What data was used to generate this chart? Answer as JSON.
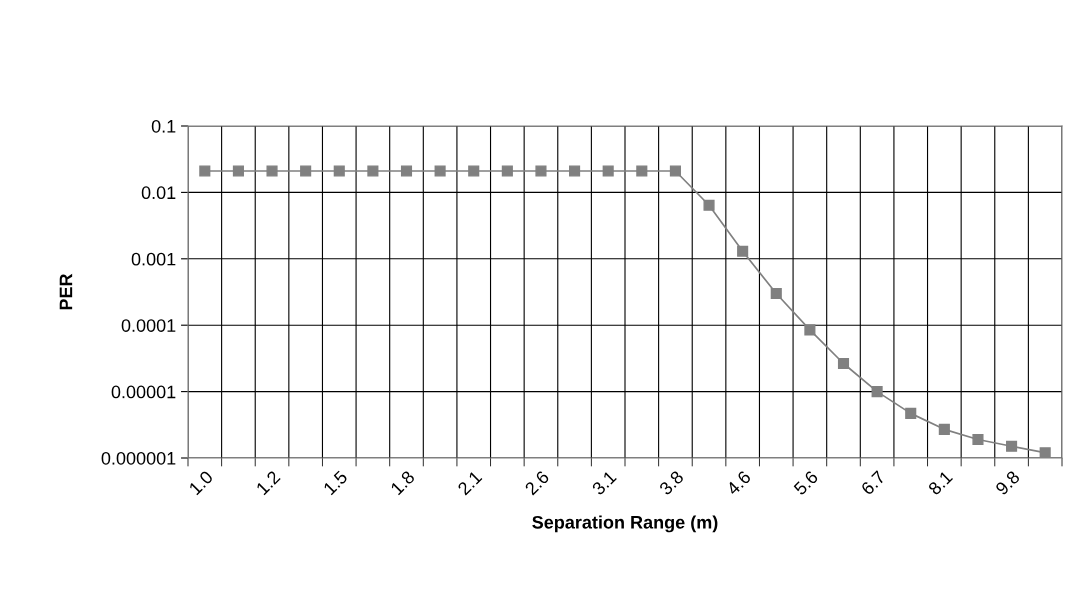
{
  "chart_data": {
    "type": "line",
    "xlabel": "Separation Range (m)",
    "ylabel": "PER",
    "categories": [
      "1.0",
      null,
      "1.2",
      null,
      "1.5",
      null,
      "1.8",
      null,
      "2.1",
      null,
      "2.6",
      null,
      "3.1",
      null,
      "3.8",
      null,
      "4.6",
      null,
      "5.6",
      null,
      "6.7",
      null,
      "8.1",
      null,
      "9.8",
      null
    ],
    "series": [
      {
        "color": "#808080",
        "values": [
          0.021,
          0.021,
          0.021,
          0.021,
          0.021,
          0.021,
          0.021,
          0.021,
          0.021,
          0.021,
          0.021,
          0.021,
          0.021,
          0.021,
          0.021,
          0.0064,
          0.0013,
          0.0003,
          8.5e-05,
          2.65e-05,
          1e-05,
          4.7e-06,
          2.7e-06,
          1.9e-06,
          1.5e-06,
          1.2e-06
        ]
      }
    ],
    "log": "y",
    "ylim": [
      1e-06,
      0.1
    ],
    "yticks": [
      {
        "value": 1e-06,
        "label": "0.000001"
      },
      {
        "value": 1e-05,
        "label": "0.00001"
      },
      {
        "value": 0.0001,
        "label": "0.0001"
      },
      {
        "value": 0.001,
        "label": "0.001"
      },
      {
        "value": 0.01,
        "label": "0.01"
      },
      {
        "value": 0.1,
        "label": "0.1"
      }
    ],
    "grid": true,
    "marker": "square",
    "line_style": "solid",
    "legend": false
  }
}
